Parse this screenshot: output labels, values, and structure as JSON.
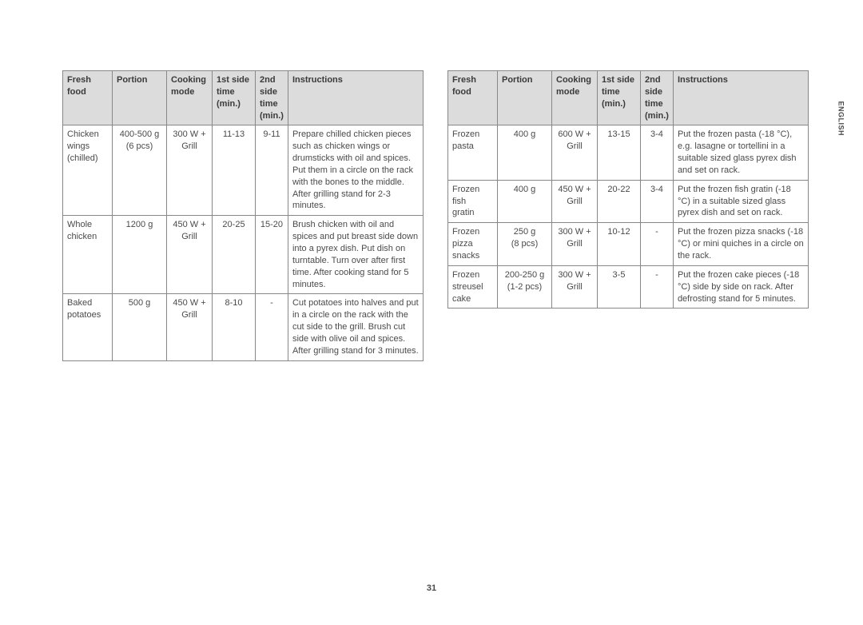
{
  "page_number": "31",
  "side_label": "ENGLISH",
  "headers": {
    "food": "Fresh food",
    "portion": "Portion",
    "mode": "Cooking mode",
    "t1": "1st side time (min.)",
    "t2": "2nd side time (min.)",
    "instr": "Instructions"
  },
  "left": [
    {
      "food": "Chicken wings (chilled)",
      "portion": "400-500 g (6 pcs)",
      "mode": "300 W + Grill",
      "t1": "11-13",
      "t2": "9-11",
      "instr": "Prepare chilled chicken pieces such as chicken wings or drumsticks with oil and spices. Put them in a circle on the rack with the bones to the middle. After grilling stand for 2-3 minutes."
    },
    {
      "food": "Whole chicken",
      "portion": "1200 g",
      "mode": "450 W + Grill",
      "t1": "20-25",
      "t2": "15-20",
      "instr": "Brush chicken with oil and spices and put breast side down into a pyrex dish. Put dish on turntable. Turn over after first time. After cooking stand for 5 minutes."
    },
    {
      "food": "Baked potatoes",
      "portion": "500 g",
      "mode": "450 W + Grill",
      "t1": "8-10",
      "t2": "-",
      "instr": "Cut potatoes into halves and put in a circle on the rack with the cut side to the grill. Brush cut side with olive oil and spices. After grilling stand for 3 minutes."
    }
  ],
  "right": [
    {
      "food": "Frozen pasta",
      "portion": "400 g",
      "mode": "600 W + Grill",
      "t1": "13-15",
      "t2": "3-4",
      "instr": "Put the frozen pasta (-18 °C), e.g. lasagne or tortellini in a suitable sized glass pyrex dish and set on rack."
    },
    {
      "food": "Frozen fish gratin",
      "portion": "400 g",
      "mode": "450 W + Grill",
      "t1": "20-22",
      "t2": "3-4",
      "instr": "Put the frozen fish gratin (-18 °C) in a suitable sized glass pyrex dish and set on rack."
    },
    {
      "food": "Frozen pizza snacks",
      "portion": "250 g (8 pcs)",
      "mode": "300 W + Grill",
      "t1": "10-12",
      "t2": "-",
      "instr": "Put the frozen pizza snacks (-18 °C) or mini quiches in a circle on the rack."
    },
    {
      "food": "Frozen streusel cake",
      "portion": "200-250 g (1-2 pcs)",
      "mode": "300 W + Grill",
      "t1": "3-5",
      "t2": "-",
      "instr": "Put the frozen cake pieces (-18 °C) side by side on rack. After defrosting stand for 5 minutes."
    }
  ],
  "style": {
    "header_bg": "#dcdcdc",
    "border_color": "#888888",
    "text_color": "#4a4a4a",
    "font_size_pt": 11
  }
}
